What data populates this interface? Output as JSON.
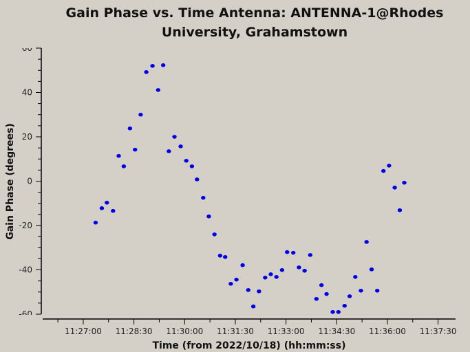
{
  "chart_data": {
    "type": "scatter",
    "title": [
      "Gain Phase vs. Time Antenna: ANTENNA-1@Rhodes",
      "University, Grahamstown"
    ],
    "xlabel": "Time (from 2022/10/18) (hh:mm:ss)",
    "ylabel": "Gain Phase (degrees)",
    "xlim": [
      "11:25:48",
      "11:38:01"
    ],
    "ylim": [
      -60,
      60
    ],
    "x_ticks": [
      "11:27:00",
      "11:28:30",
      "11:30:00",
      "11:31:30",
      "11:33:00",
      "11:34:30",
      "11:36:00",
      "11:37:30"
    ],
    "y_ticks": [
      "60",
      "40",
      "20",
      "0",
      "-20",
      "-40",
      "-60"
    ],
    "grid": false,
    "marker_color": "#0000e6",
    "series": [
      {
        "name": "ANTENNA-1",
        "x": [
          "11:27:22",
          "11:27:33",
          "11:27:42",
          "11:27:53",
          "11:28:03",
          "11:28:12",
          "11:28:23",
          "11:28:32",
          "11:28:42",
          "11:28:52",
          "11:29:03",
          "11:29:13",
          "11:29:22",
          "11:29:32",
          "11:29:42",
          "11:29:53",
          "11:30:03",
          "11:30:13",
          "11:30:22",
          "11:30:33",
          "11:30:43",
          "11:30:53",
          "11:31:03",
          "11:31:12",
          "11:31:22",
          "11:31:32",
          "11:31:43",
          "11:31:53",
          "11:32:02",
          "11:32:12",
          "11:32:23",
          "11:32:33",
          "11:32:43",
          "11:32:53",
          "11:33:02",
          "11:33:13",
          "11:33:23",
          "11:33:33",
          "11:33:43",
          "11:33:54",
          "11:34:03",
          "11:34:12",
          "11:34:23",
          "11:34:33",
          "11:34:44",
          "11:34:53",
          "11:35:03",
          "11:35:13",
          "11:35:23",
          "11:35:32",
          "11:35:42",
          "11:35:53",
          "11:36:03",
          "11:36:13",
          "11:36:22",
          "11:36:30"
        ],
        "y": [
          -18.7,
          -12.2,
          -9.7,
          -13.4,
          11.4,
          6.7,
          23.8,
          14.2,
          30.0,
          49.2,
          52.0,
          41.1,
          52.3,
          13.5,
          20.0,
          15.7,
          9.2,
          6.7,
          0.8,
          -7.5,
          -15.9,
          -24.0,
          -33.6,
          -34.2,
          -46.3,
          -44.4,
          -37.9,
          -49.1,
          -56.5,
          -49.7,
          -43.5,
          -42.0,
          -43.2,
          -40.1,
          -32.0,
          -32.3,
          -38.9,
          -40.4,
          -33.3,
          -53.1,
          -46.9,
          -50.9,
          -59.0,
          -59.0,
          -56.2,
          -51.9,
          -43.2,
          -49.4,
          -27.4,
          -39.8,
          -49.4,
          4.6,
          7.0,
          -2.9,
          -13.1,
          -0.7
        ]
      }
    ]
  }
}
